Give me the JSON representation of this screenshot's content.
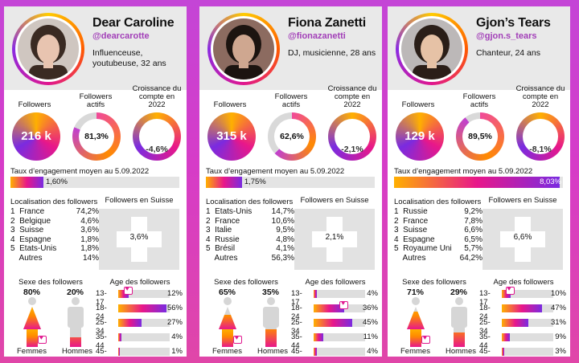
{
  "labels": {
    "followers": "Followers",
    "actifs": "Followers actifs",
    "croissance": "Croissance du compte en 2022",
    "engagement": "Taux d’engagement moyen au 5.09.2022",
    "localisation": "Localisation des followers",
    "suisse": "Followers en Suisse",
    "sexe": "Sexe des followers",
    "age": "Age des followers",
    "femmes": "Femmes",
    "hommes": "Hommes"
  },
  "colors": {
    "background": "#d63cc8",
    "accent": "#a23fb8",
    "gradient_start": "#ffb000",
    "gradient_mid": "#e8178a",
    "gradient_end": "#7a2be0"
  },
  "cards": [
    {
      "name": "Dear Caroline",
      "handle": "@dearcarotte",
      "bio": "Influenceuse, youtubeuse, 32 ans",
      "followers": "216 k",
      "actifs": "81,3%",
      "actifs_value": 81.3,
      "croissance": "-4,6%",
      "engagement": "1,60%",
      "engagement_value": 1.6,
      "loc": [
        {
          "c": "1  France",
          "p": "74,2%"
        },
        {
          "c": "2  Belgique",
          "p": "4,6%"
        },
        {
          "c": "3  Suisse",
          "p": "3,6%"
        },
        {
          "c": "4  Espagne",
          "p": "1,8%"
        },
        {
          "c": "5  Etats-Unis",
          "p": "1,8%"
        },
        {
          "c": "    Autres",
          "p": "14%"
        }
      ],
      "suisse": "3,6%",
      "femmes": "80%",
      "femmes_value": 80,
      "hommes": "20%",
      "hommes_value": 20,
      "ages": [
        {
          "k": "13-17",
          "p": "12%",
          "v": 12,
          "heart": true
        },
        {
          "k": "18-24",
          "p": "56%",
          "v": 56,
          "heart": false
        },
        {
          "k": "25-34",
          "p": "27%",
          "v": 27,
          "heart": false
        },
        {
          "k": "35-44",
          "p": "4%",
          "v": 4,
          "heart": false
        },
        {
          "k": "45-64",
          "p": "1%",
          "v": 1,
          "heart": false
        }
      ]
    },
    {
      "name": "Fiona Zanetti",
      "handle": "@fionazanetti",
      "bio": "DJ, musicienne, 28 ans",
      "followers": "315 k",
      "actifs": "62,6%",
      "actifs_value": 62.6,
      "croissance": "-2,1%",
      "engagement": "1,75%",
      "engagement_value": 1.75,
      "loc": [
        {
          "c": "1  Etats-Unis",
          "p": "14,7%"
        },
        {
          "c": "2  France",
          "p": "10,6%"
        },
        {
          "c": "3  Italie",
          "p": "9,5%"
        },
        {
          "c": "4  Russie",
          "p": "4,8%"
        },
        {
          "c": "5  Brésil",
          "p": "4,1%"
        },
        {
          "c": "    Autres",
          "p": "56,3%"
        }
      ],
      "suisse": "2,1%",
      "femmes": "65%",
      "femmes_value": 65,
      "hommes": "35%",
      "hommes_value": 35,
      "ages": [
        {
          "k": "13-17",
          "p": "4%",
          "v": 4,
          "heart": false
        },
        {
          "k": "18-24",
          "p": "36%",
          "v": 36,
          "heart": true
        },
        {
          "k": "25-34",
          "p": "45%",
          "v": 45,
          "heart": false
        },
        {
          "k": "35-44",
          "p": "11%",
          "v": 11,
          "heart": false
        },
        {
          "k": "45-64",
          "p": "4%",
          "v": 4,
          "heart": false
        }
      ]
    },
    {
      "name": "Gjon’s Tears",
      "handle": "@gjon.s_tears",
      "bio": "Chanteur, 24 ans",
      "followers": "129 k",
      "actifs": "89,5%",
      "actifs_value": 89.5,
      "croissance": "-8,1%",
      "engagement": "8,03%",
      "engagement_value": 8.03,
      "loc": [
        {
          "c": "1  Russie",
          "p": "9,2%"
        },
        {
          "c": "2  France",
          "p": "7,8%"
        },
        {
          "c": "3  Suisse",
          "p": "6,6%"
        },
        {
          "c": "4  Espagne",
          "p": "6,5%"
        },
        {
          "c": "5  Royaume Uni",
          "p": "5,7%"
        },
        {
          "c": "    Autres",
          "p": "64,2%"
        }
      ],
      "suisse": "6,6%",
      "femmes": "71%",
      "femmes_value": 71,
      "hommes": "29%",
      "hommes_value": 29,
      "ages": [
        {
          "k": "13-17",
          "p": "10%",
          "v": 10,
          "heart": true
        },
        {
          "k": "18-24",
          "p": "47%",
          "v": 47,
          "heart": false
        },
        {
          "k": "25-34",
          "p": "31%",
          "v": 31,
          "heart": false
        },
        {
          "k": "35-44",
          "p": "9%",
          "v": 9,
          "heart": false
        },
        {
          "k": "45-64",
          "p": "3%",
          "v": 3,
          "heart": false
        }
      ]
    }
  ]
}
